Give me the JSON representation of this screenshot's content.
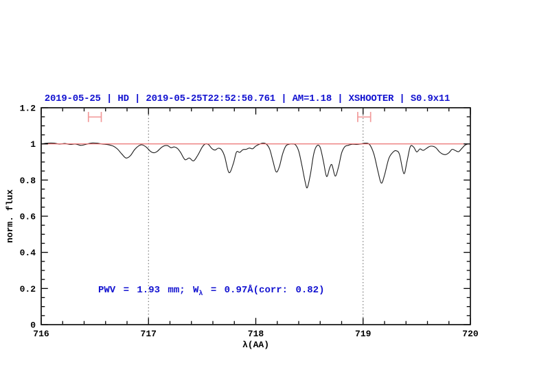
{
  "title": {
    "text": "2019-05-25 | HD | 2019-05-25T22:52:50.761 | AM=1.18 | XSHOOTER | S0.9x11",
    "color": "#1212d0"
  },
  "annotation": {
    "pre": "PWV = 1.93 mm; W",
    "sub": "λ",
    "post": " = 0.97Å(corr: 0.82)",
    "color": "#1212d0"
  },
  "chart_data": {
    "type": "line",
    "title": "2019-05-25 | HD | 2019-05-25T22:52:50.761 | AM=1.18 | XSHOOTER | S0.9x11",
    "xlabel": "λ(AA)",
    "ylabel": "norm. flux",
    "xlim": [
      716,
      720
    ],
    "ylim": [
      0,
      1.2
    ],
    "grid": false,
    "x_ticks": {
      "values": [
        716,
        717,
        718,
        719,
        720
      ],
      "labels": [
        "716",
        "717",
        "718",
        "719",
        "720"
      ],
      "minor_step": 0.2
    },
    "y_ticks": {
      "values": [
        0,
        0.2,
        0.4,
        0.6,
        0.8,
        1.0,
        1.2
      ],
      "labels": [
        "0",
        "0.2",
        "0.4",
        "0.6",
        "0.8",
        "1",
        "1.2"
      ],
      "minor_step": 0.05
    },
    "continuum": {
      "y": 1.0,
      "color": "#e86060"
    },
    "vlines": {
      "x": [
        717,
        719
      ],
      "style": "dotted",
      "color": "#555555"
    },
    "range_markers": [
      {
        "x1": 716.44,
        "x2": 716.56,
        "y": 1.149,
        "cap": 0.028,
        "color": "#f29a9a"
      },
      {
        "x1": 718.95,
        "x2": 719.07,
        "y": 1.149,
        "cap": 0.028,
        "color": "#f29a9a"
      }
    ],
    "series": [
      {
        "name": "telluric-spectrum",
        "color": "#1c1c1c",
        "points": [
          [
            716.0,
            1.0
          ],
          [
            716.06,
            1.004
          ],
          [
            716.12,
            1.004
          ],
          [
            716.17,
            0.999
          ],
          [
            716.22,
            1.002
          ],
          [
            716.27,
            0.997
          ],
          [
            716.32,
            0.999
          ],
          [
            716.37,
            0.992
          ],
          [
            716.42,
            0.998
          ],
          [
            716.47,
            1.005
          ],
          [
            716.52,
            1.004
          ],
          [
            716.57,
            0.999
          ],
          [
            716.62,
            0.996
          ],
          [
            716.67,
            0.988
          ],
          [
            716.71,
            0.972
          ],
          [
            716.75,
            0.945
          ],
          [
            716.79,
            0.922
          ],
          [
            716.83,
            0.934
          ],
          [
            716.87,
            0.968
          ],
          [
            716.91,
            0.99
          ],
          [
            716.94,
            0.995
          ],
          [
            716.98,
            0.982
          ],
          [
            717.02,
            0.958
          ],
          [
            717.05,
            0.951
          ],
          [
            717.08,
            0.958
          ],
          [
            717.12,
            0.98
          ],
          [
            717.15,
            0.99
          ],
          [
            717.18,
            0.99
          ],
          [
            717.21,
            0.979
          ],
          [
            717.24,
            0.983
          ],
          [
            717.27,
            0.975
          ],
          [
            717.3,
            0.952
          ],
          [
            717.34,
            0.913
          ],
          [
            717.38,
            0.922
          ],
          [
            717.42,
            0.906
          ],
          [
            717.46,
            0.938
          ],
          [
            717.5,
            0.982
          ],
          [
            717.53,
            1.0
          ],
          [
            717.56,
            0.996
          ],
          [
            717.59,
            0.975
          ],
          [
            717.62,
            0.966
          ],
          [
            717.65,
            0.976
          ],
          [
            717.68,
            0.968
          ],
          [
            717.71,
            0.93
          ],
          [
            717.75,
            0.841
          ],
          [
            717.79,
            0.89
          ],
          [
            717.82,
            0.955
          ],
          [
            717.85,
            0.953
          ],
          [
            717.88,
            0.968
          ],
          [
            717.91,
            0.97
          ],
          [
            717.94,
            0.977
          ],
          [
            717.97,
            0.973
          ],
          [
            718.0,
            0.988
          ],
          [
            718.04,
            1.0
          ],
          [
            718.07,
            1.005
          ],
          [
            718.1,
            0.998
          ],
          [
            718.13,
            0.97
          ],
          [
            718.16,
            0.905
          ],
          [
            718.19,
            0.845
          ],
          [
            718.22,
            0.875
          ],
          [
            718.25,
            0.945
          ],
          [
            718.28,
            0.988
          ],
          [
            718.31,
            0.998
          ],
          [
            718.34,
            1.0
          ],
          [
            718.37,
            0.995
          ],
          [
            718.4,
            0.96
          ],
          [
            718.43,
            0.88
          ],
          [
            718.46,
            0.79
          ],
          [
            718.48,
            0.758
          ],
          [
            718.51,
            0.835
          ],
          [
            718.54,
            0.945
          ],
          [
            718.57,
            0.99
          ],
          [
            718.6,
            0.98
          ],
          [
            718.63,
            0.905
          ],
          [
            718.66,
            0.82
          ],
          [
            718.69,
            0.87
          ],
          [
            718.71,
            0.884
          ],
          [
            718.74,
            0.822
          ],
          [
            718.77,
            0.87
          ],
          [
            718.8,
            0.95
          ],
          [
            718.83,
            0.985
          ],
          [
            718.86,
            0.992
          ],
          [
            718.9,
            0.998
          ],
          [
            718.94,
            0.997
          ],
          [
            718.98,
            1.0
          ],
          [
            719.02,
            1.004
          ],
          [
            719.06,
            0.997
          ],
          [
            719.1,
            0.945
          ],
          [
            719.14,
            0.845
          ],
          [
            719.17,
            0.783
          ],
          [
            719.2,
            0.828
          ],
          [
            719.24,
            0.92
          ],
          [
            719.28,
            0.955
          ],
          [
            719.31,
            0.962
          ],
          [
            719.34,
            0.94
          ],
          [
            719.38,
            0.836
          ],
          [
            719.41,
            0.905
          ],
          [
            719.44,
            0.985
          ],
          [
            719.47,
            0.983
          ],
          [
            719.5,
            0.956
          ],
          [
            719.53,
            0.972
          ],
          [
            719.56,
            0.964
          ],
          [
            719.59,
            0.975
          ],
          [
            719.62,
            0.986
          ],
          [
            719.65,
            0.987
          ],
          [
            719.68,
            0.978
          ],
          [
            719.71,
            0.957
          ],
          [
            719.74,
            0.944
          ],
          [
            719.77,
            0.941
          ],
          [
            719.8,
            0.951
          ],
          [
            719.83,
            0.97
          ],
          [
            719.86,
            0.963
          ],
          [
            719.89,
            0.957
          ],
          [
            719.92,
            0.975
          ],
          [
            719.95,
            0.993
          ],
          [
            719.98,
            1.0
          ],
          [
            720.0,
            0.998
          ]
        ]
      }
    ],
    "legend": null
  }
}
